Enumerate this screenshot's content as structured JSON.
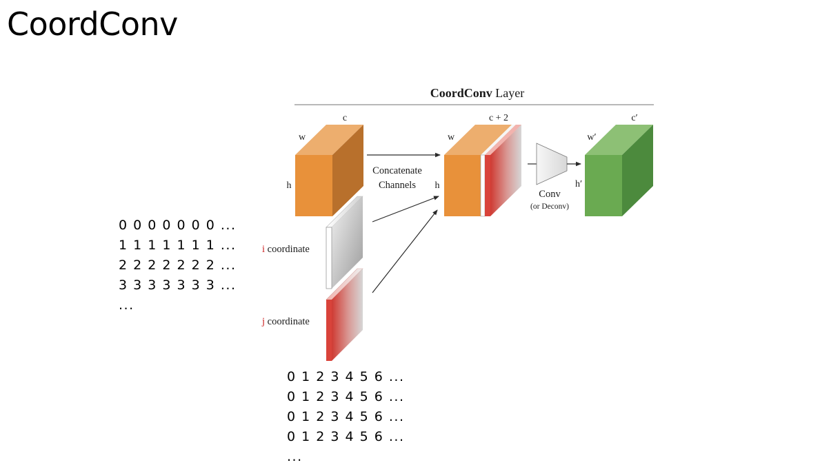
{
  "slide": {
    "title": "CoordConv"
  },
  "i_matrix": {
    "rows": [
      "0 0 0 0 0 0 0 ...",
      "1 1 1 1 1 1 1 ...",
      "2 2 2 2 2 2 2 ...",
      "3 3 3 3 3 3 3 ...",
      "..."
    ]
  },
  "j_matrix": {
    "rows": [
      "0 1 2 3 4 5 6 ...",
      "0 1 2 3 4 5 6 ...",
      "0 1 2 3 4 5 6 ...",
      "0 1 2 3 4 5 6 ...",
      "..."
    ]
  },
  "diagram": {
    "layer_title_bold": "CoordConv",
    "layer_title_rest": " Layer",
    "input": {
      "c": "c",
      "w": "w",
      "h": "h"
    },
    "i_coord": {
      "prefix": "i",
      "rest": " coordinate"
    },
    "j_coord": {
      "prefix": "j",
      "rest": " coordinate"
    },
    "concat": {
      "line1": "Concatenate",
      "line2": "Channels"
    },
    "middle": {
      "c": "c + 2",
      "w": "w",
      "h": "h"
    },
    "conv": {
      "label": "Conv",
      "sub": "(or Deconv)"
    },
    "output": {
      "c": "c′",
      "w": "w′",
      "h": "h′"
    },
    "colors": {
      "orange_front": "#E8913A",
      "orange_top": "#EDAE6E",
      "orange_side": "#B8702C",
      "green_front": "#6AAA51",
      "green_top": "#8DC075",
      "green_side": "#4C8A3D",
      "coord_red": "#D9433A",
      "label_red": "#CC2222"
    }
  }
}
